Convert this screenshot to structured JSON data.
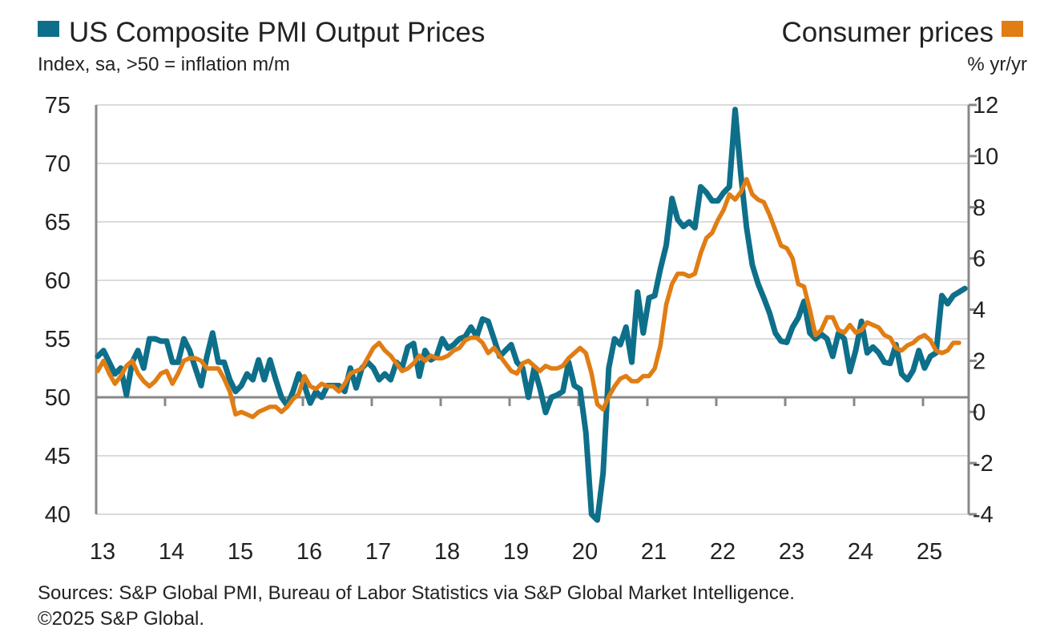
{
  "chart_data": {
    "type": "line",
    "title_left": "US Composite PMI Output Prices",
    "subtitle_left": "Index, sa, >50 = inflation m/m",
    "title_right": "Consumer prices",
    "subtitle_right": "% yr/yr",
    "source": "Sources: S&P Global PMI, Bureau of Labor Statistics via S&P Global Market Intelligence.",
    "copyright": "©2025 S&P Global.",
    "x_ticks": [
      "13",
      "14",
      "15",
      "16",
      "17",
      "18",
      "19",
      "20",
      "21",
      "22",
      "23",
      "24",
      "25"
    ],
    "y_left_ticks": [
      "75",
      "70",
      "65",
      "60",
      "55",
      "50",
      "45",
      "40"
    ],
    "y_right_ticks": [
      "12",
      "10",
      "8",
      "6",
      "4",
      "2",
      "0",
      "-2",
      "-4"
    ],
    "y_left_range": [
      40,
      75
    ],
    "y_right_range": [
      -4,
      12
    ],
    "x_start": "2013-01",
    "grid": true,
    "series": [
      {
        "name": "US Composite PMI Output Prices",
        "axis": "left",
        "color": "#0e6f8a",
        "values": [
          53.5,
          54,
          53,
          52,
          52.5,
          50.2,
          53,
          54,
          52.5,
          55,
          55,
          54.8,
          54.8,
          53,
          53,
          55,
          54,
          52.5,
          51,
          53.5,
          55.5,
          53,
          53,
          51.5,
          50.5,
          51,
          52,
          51.5,
          53.2,
          51.5,
          53.2,
          51.5,
          50,
          49.3,
          50.5,
          52,
          51,
          49.5,
          50.5,
          50,
          51,
          51,
          51,
          50.5,
          52.5,
          50.8,
          52.5,
          53,
          52.5,
          51.5,
          52,
          51.5,
          53,
          52.5,
          54.3,
          54.6,
          51.8,
          54,
          53.2,
          53.5,
          55,
          54.2,
          54.5,
          55,
          55.2,
          56,
          55.2,
          56.7,
          56.5,
          55,
          53.5,
          54,
          54.5,
          53,
          52.5,
          50,
          52.5,
          50.8,
          48.7,
          50,
          50.2,
          50.5,
          53,
          51,
          50.7,
          47,
          40,
          39.5,
          43.5,
          52.5,
          55,
          54.5,
          56,
          53,
          59,
          55.5,
          58.5,
          58.7,
          61,
          63,
          67,
          65.2,
          64.6,
          65,
          64.5,
          68,
          67.5,
          66.8,
          66.8,
          67.5,
          68,
          74.6,
          69,
          64.5,
          61.3,
          59.7,
          58.5,
          57.2,
          55.5,
          54.8,
          54.7,
          56,
          56.8,
          58.2,
          55.5,
          55,
          55.4,
          55,
          53.5,
          55.5,
          55,
          52.2,
          54,
          56.5,
          53.8,
          54.3,
          53.8,
          53,
          52.9,
          54.5,
          52,
          51.5,
          52.3,
          54,
          52.5,
          53.5,
          53.8,
          58.7,
          58,
          58.7,
          59,
          59.3
        ]
      },
      {
        "name": "Consumer prices",
        "axis": "right",
        "color": "#e07d14",
        "values": [
          1.6,
          2.0,
          1.5,
          1.1,
          1.4,
          1.8,
          2.0,
          1.5,
          1.2,
          1.0,
          1.2,
          1.5,
          1.6,
          1.1,
          1.5,
          2.0,
          2.1,
          2.1,
          2.0,
          1.7,
          1.7,
          1.7,
          1.3,
          0.8,
          -0.1,
          0.0,
          -0.1,
          -0.2,
          0.0,
          0.1,
          0.2,
          0.2,
          0.0,
          0.2,
          0.5,
          0.7,
          1.4,
          1.0,
          0.9,
          1.1,
          1.0,
          1.0,
          0.8,
          1.1,
          1.5,
          1.6,
          1.7,
          2.1,
          2.5,
          2.7,
          2.4,
          2.2,
          1.9,
          1.6,
          1.7,
          1.9,
          2.2,
          2.0,
          2.2,
          2.1,
          2.1,
          2.2,
          2.4,
          2.5,
          2.8,
          2.9,
          2.9,
          2.7,
          2.3,
          2.5,
          2.2,
          1.9,
          1.6,
          1.5,
          1.9,
          2.0,
          1.8,
          1.6,
          1.8,
          1.7,
          1.7,
          1.8,
          2.1,
          2.3,
          2.5,
          2.3,
          1.5,
          0.3,
          0.1,
          0.6,
          1.0,
          1.3,
          1.4,
          1.2,
          1.2,
          1.4,
          1.4,
          1.7,
          2.6,
          4.2,
          5.0,
          5.4,
          5.4,
          5.3,
          5.4,
          6.2,
          6.8,
          7.0,
          7.5,
          7.9,
          8.5,
          8.3,
          8.6,
          9.1,
          8.5,
          8.3,
          8.2,
          7.7,
          7.1,
          6.5,
          6.4,
          6.0,
          5.0,
          4.9,
          4.0,
          3.0,
          3.2,
          3.7,
          3.7,
          3.2,
          3.1,
          3.4,
          3.1,
          3.2,
          3.5,
          3.4,
          3.3,
          3.0,
          2.9,
          2.5,
          2.4,
          2.6,
          2.7,
          2.9,
          3.0,
          2.8,
          2.4,
          2.3,
          2.4,
          2.7,
          2.7
        ]
      }
    ]
  }
}
